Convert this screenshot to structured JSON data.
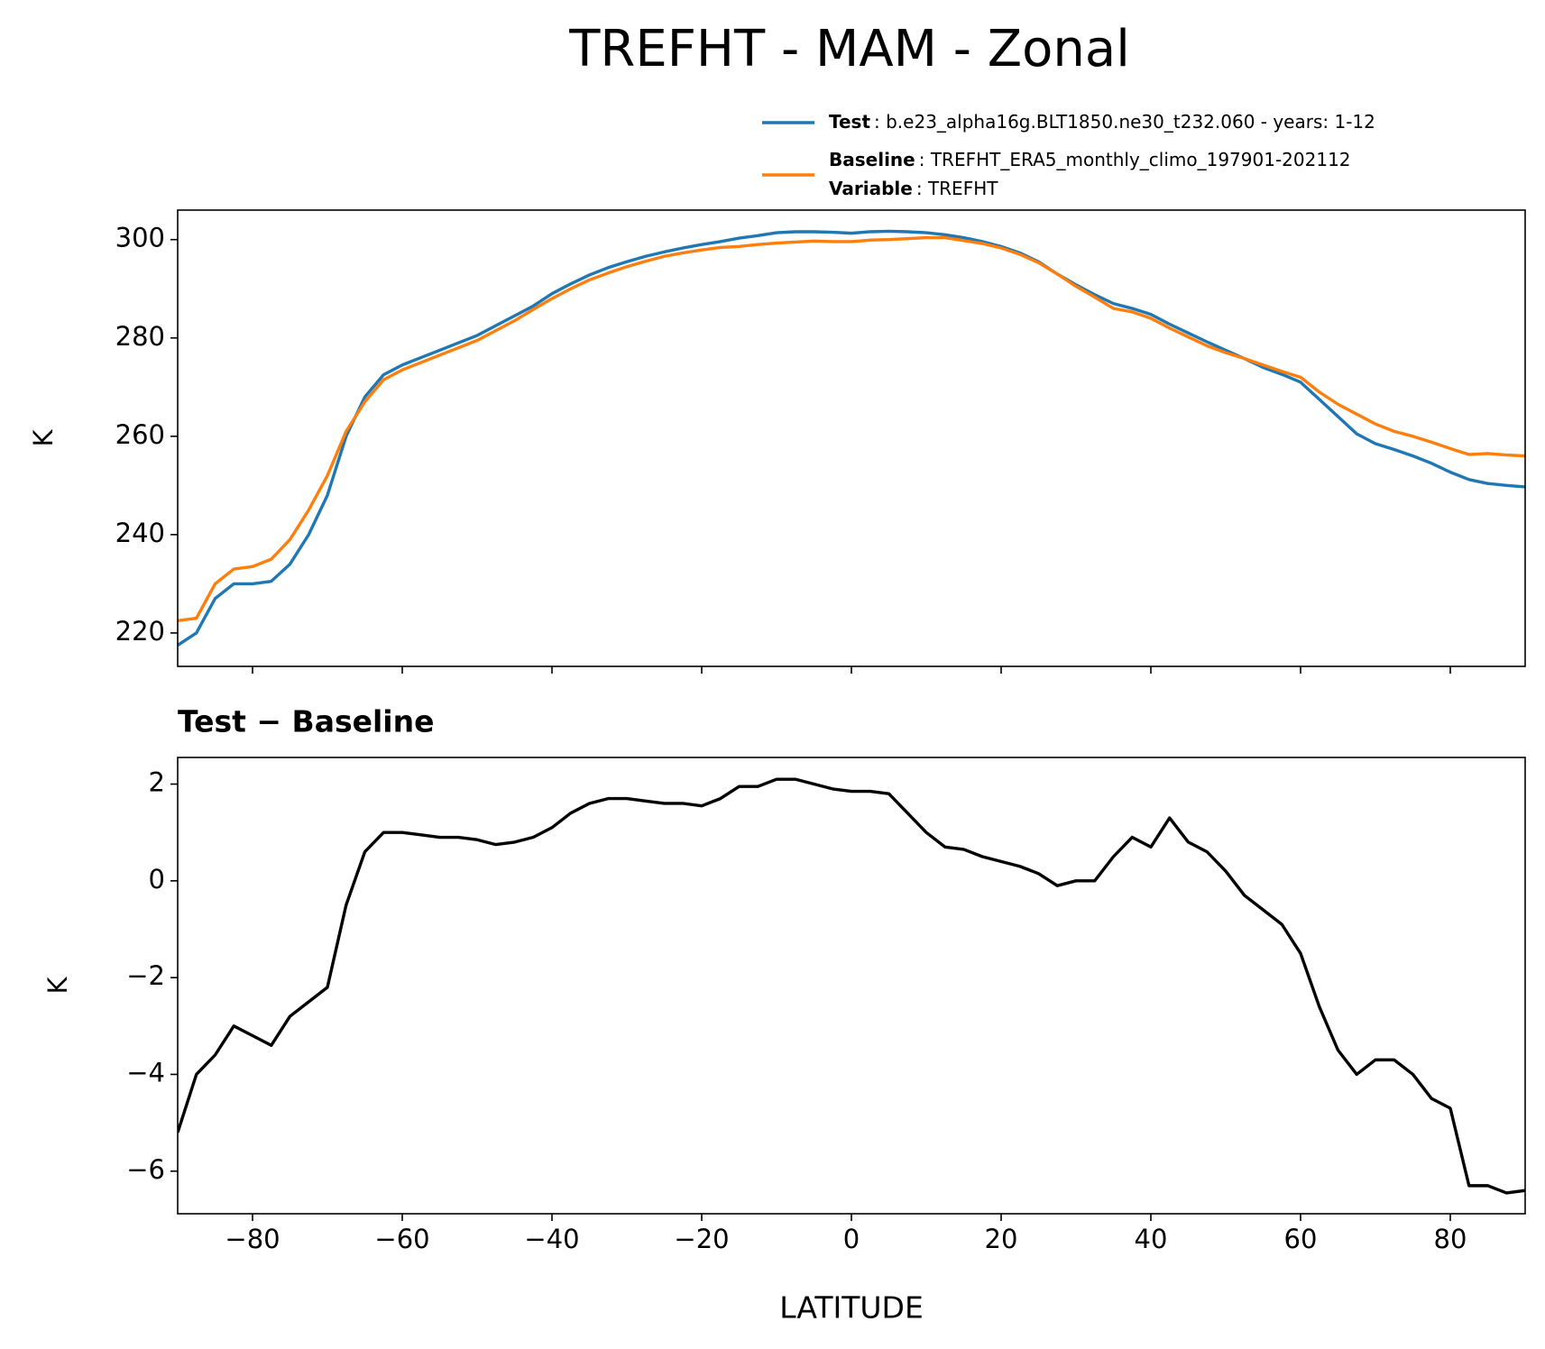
{
  "title": "TREFHT - MAM - Zonal",
  "chart_data": [
    {
      "type": "line",
      "ylabel": "K",
      "x": [
        -90,
        -87.5,
        -85,
        -82.5,
        -80,
        -77.5,
        -75,
        -72.5,
        -70,
        -67.5,
        -65,
        -62.5,
        -60,
        -57.5,
        -55,
        -52.5,
        -50,
        -47.5,
        -45,
        -42.5,
        -40,
        -37.5,
        -35,
        -32.5,
        -30,
        -27.5,
        -25,
        -22.5,
        -20,
        -17.5,
        -15,
        -12.5,
        -10,
        -7.5,
        -5,
        -2.5,
        0,
        2.5,
        5,
        7.5,
        10,
        12.5,
        15,
        17.5,
        20,
        22.5,
        25,
        27.5,
        30,
        32.5,
        35,
        37.5,
        40,
        42.5,
        45,
        47.5,
        50,
        52.5,
        55,
        57.5,
        60,
        62.5,
        65,
        67.5,
        70,
        72.5,
        75,
        77.5,
        80,
        82.5,
        85,
        87.5,
        90
      ],
      "series": [
        {
          "name": "Test",
          "detail": ": b.e23_alpha16g.BLT1850.ne30_t232.060 - years: 1-12",
          "color": "#1f77b4",
          "values": [
            217.5,
            220,
            227,
            230,
            230,
            230.5,
            234,
            240,
            248,
            260,
            268,
            272.5,
            274.5,
            276,
            277.5,
            279,
            280.5,
            282.5,
            284.5,
            286.5,
            289,
            291,
            292.8,
            294.3,
            295.5,
            296.6,
            297.5,
            298.3,
            299,
            299.6,
            300.3,
            300.8,
            301.4,
            301.6,
            301.6,
            301.5,
            301.3,
            301.6,
            301.7,
            301.6,
            301.4,
            301,
            300.4,
            299.6,
            298.6,
            297.3,
            295.5,
            293,
            290.8,
            288.8,
            287,
            286,
            284.8,
            282.8,
            281,
            279.2,
            277.5,
            275.8,
            274,
            272.6,
            271,
            267.5,
            264,
            260.5,
            258.5,
            257.3,
            256,
            254.5,
            252.7,
            251.2,
            250.4,
            250,
            249.7
          ]
        },
        {
          "name": "Baseline",
          "detail": ": TREFHT_ERA5_monthly_climo_197901-202112",
          "color": "#ff7f0e",
          "values": [
            222.5,
            223,
            230,
            233,
            233.5,
            235,
            239,
            245,
            252,
            261,
            267,
            271.5,
            273.5,
            275,
            276.5,
            278,
            279.5,
            281.5,
            283.5,
            285.8,
            288,
            290,
            291.8,
            293.2,
            294.5,
            295.6,
            296.6,
            297.3,
            297.9,
            298.4,
            298.6,
            299,
            299.3,
            299.5,
            299.7,
            299.6,
            299.6,
            299.9,
            300,
            300.2,
            300.4,
            300.4,
            299.8,
            299.2,
            298.3,
            297,
            295.3,
            293,
            290.5,
            288.3,
            286,
            285.3,
            284,
            282,
            280.2,
            278.4,
            277,
            275.8,
            274.5,
            273.2,
            272,
            269,
            266.5,
            264.5,
            262.5,
            261,
            260,
            258.8,
            257.5,
            256.3,
            256.5,
            256.2,
            256
          ]
        }
      ],
      "variable": {
        "name": "Variable",
        "detail": ": TREFHT"
      },
      "xlim": [
        -90,
        90
      ],
      "xticks": [
        -80,
        -60,
        -40,
        -20,
        0,
        20,
        40,
        60,
        80
      ],
      "ylim": [
        213.2,
        306
      ],
      "yticks": [
        220,
        240,
        260,
        280,
        300
      ],
      "legend": "upper right"
    },
    {
      "type": "line",
      "title": "Test − Baseline",
      "ylabel": "K",
      "xlabel": "LATITUDE",
      "x": [
        -90,
        -87.5,
        -85,
        -82.5,
        -80,
        -77.5,
        -75,
        -72.5,
        -70,
        -67.5,
        -65,
        -62.5,
        -60,
        -57.5,
        -55,
        -52.5,
        -50,
        -47.5,
        -45,
        -42.5,
        -40,
        -37.5,
        -35,
        -32.5,
        -30,
        -27.5,
        -25,
        -22.5,
        -20,
        -17.5,
        -15,
        -12.5,
        -10,
        -7.5,
        -5,
        -2.5,
        0,
        2.5,
        5,
        7.5,
        10,
        12.5,
        15,
        17.5,
        20,
        22.5,
        25,
        27.5,
        30,
        32.5,
        35,
        37.5,
        40,
        42.5,
        45,
        47.5,
        50,
        52.5,
        55,
        57.5,
        60,
        62.5,
        65,
        67.5,
        70,
        72.5,
        75,
        77.5,
        80,
        82.5,
        85,
        87.5,
        90
      ],
      "color": "#000000",
      "values": [
        -5.2,
        -4.0,
        -3.6,
        -3.0,
        -3.2,
        -3.4,
        -2.8,
        -2.5,
        -2.2,
        -0.5,
        0.6,
        1.0,
        1.0,
        0.95,
        0.9,
        0.9,
        0.85,
        0.75,
        0.8,
        0.9,
        1.1,
        1.4,
        1.6,
        1.7,
        1.7,
        1.65,
        1.6,
        1.6,
        1.55,
        1.7,
        1.95,
        1.95,
        2.1,
        2.1,
        2.0,
        1.9,
        1.85,
        1.85,
        1.8,
        1.4,
        1.0,
        0.7,
        0.65,
        0.5,
        0.4,
        0.3,
        0.15,
        -0.1,
        0.0,
        0.0,
        0.5,
        0.9,
        0.7,
        1.3,
        0.8,
        0.6,
        0.2,
        -0.3,
        -0.6,
        -0.9,
        -1.5,
        -2.6,
        -3.5,
        -4.0,
        -3.7,
        -3.7,
        -4.0,
        -4.5,
        -4.7,
        -6.3,
        -6.3,
        -6.45,
        -6.4
      ],
      "xlim": [
        -90,
        90
      ],
      "xticks": [
        {
          "value": -80,
          "label": "−80"
        },
        {
          "value": -60,
          "label": "−60"
        },
        {
          "value": -40,
          "label": "−40"
        },
        {
          "value": -20,
          "label": "−20"
        },
        0,
        20,
        40,
        60,
        80
      ],
      "ylim": [
        -6.88,
        2.55
      ],
      "yticks": [
        {
          "value": -6,
          "label": "−6"
        },
        {
          "value": -4,
          "label": "−4"
        },
        {
          "value": -2,
          "label": "−2"
        },
        0,
        2
      ]
    }
  ]
}
